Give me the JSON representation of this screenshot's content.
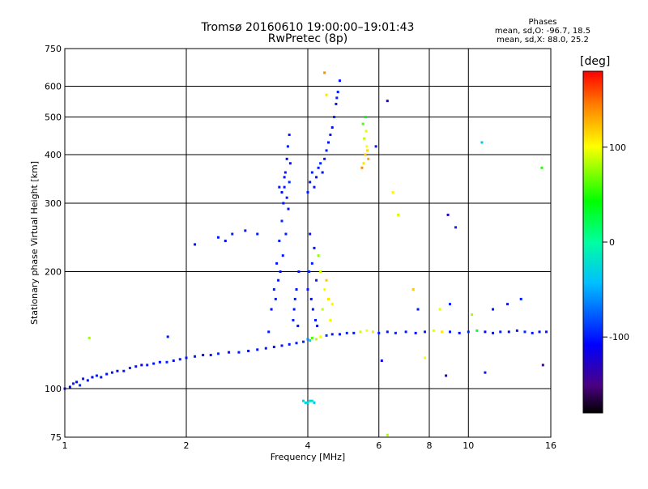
{
  "title_line1": "Tromsø 20160610 19:00:00–19:01:43",
  "title_line2": "RwPretec (8p)",
  "stats": {
    "heading": "Phases",
    "o_line": "mean, sd,O: -96.7, 18.5",
    "x_line": "mean, sd,X:  88.0, 25.2"
  },
  "colorbar": {
    "unit": "[deg]",
    "range": [
      -180,
      180
    ],
    "ticks": [
      {
        "label": "100",
        "value": 100
      },
      {
        "label": "0",
        "value": 0
      },
      {
        "label": "-100",
        "value": -100
      }
    ]
  },
  "chart_data": {
    "type": "scatter",
    "xlabel": "Frequency [MHz]",
    "ylabel": "Stationary phase Virtual Height [km]",
    "xscale": "log",
    "yscale": "log",
    "xlim": [
      1,
      16
    ],
    "ylim": [
      75,
      750
    ],
    "grid": true,
    "x_ticks": [
      {
        "label": "1",
        "value": 1
      },
      {
        "label": "2",
        "value": 2
      },
      {
        "label": "4",
        "value": 4
      },
      {
        "label": "6",
        "value": 6
      },
      {
        "label": "8",
        "value": 8
      },
      {
        "label": "10",
        "value": 10
      },
      {
        "label": "16",
        "value": 16
      }
    ],
    "y_ticks": [
      {
        "label": "75",
        "value": 75
      },
      {
        "label": "100",
        "value": 100
      },
      {
        "label": "200",
        "value": 200
      },
      {
        "label": "300",
        "value": 300
      },
      {
        "label": "400",
        "value": 400
      },
      {
        "label": "500",
        "value": 500
      },
      {
        "label": "600",
        "value": 600
      },
      {
        "label": "750",
        "value": 750
      }
    ],
    "gridlines_x": [
      1,
      2,
      4,
      6,
      8,
      10,
      16
    ],
    "gridlines_y": [
      75,
      100,
      200,
      300,
      400,
      500,
      600,
      750
    ],
    "series": [
      {
        "color_by": "phase_deg",
        "points": [
          [
            1.0,
            100,
            -100
          ],
          [
            1.03,
            101,
            -105
          ],
          [
            1.05,
            103,
            -98
          ],
          [
            1.07,
            104,
            -110
          ],
          [
            1.09,
            102,
            -95
          ],
          [
            1.11,
            106,
            -100
          ],
          [
            1.14,
            105,
            -102
          ],
          [
            1.17,
            107,
            -108
          ],
          [
            1.2,
            108,
            -97
          ],
          [
            1.23,
            107,
            -101
          ],
          [
            1.27,
            109,
            -104
          ],
          [
            1.31,
            110,
            -99
          ],
          [
            1.35,
            111,
            -106
          ],
          [
            1.4,
            111,
            -100
          ],
          [
            1.45,
            113,
            -95
          ],
          [
            1.5,
            114,
            -103
          ],
          [
            1.55,
            115,
            -110
          ],
          [
            1.6,
            115,
            -98
          ],
          [
            1.66,
            116,
            -101
          ],
          [
            1.72,
            117,
            -105
          ],
          [
            1.79,
            117,
            -97
          ],
          [
            1.86,
            118,
            -104
          ],
          [
            1.93,
            119,
            -100
          ],
          [
            2.0,
            120,
            -102
          ],
          [
            2.1,
            121,
            -99
          ],
          [
            2.2,
            122,
            -106
          ],
          [
            2.3,
            122,
            -101
          ],
          [
            2.4,
            123,
            -96
          ],
          [
            2.55,
            124,
            -103
          ],
          [
            2.7,
            124,
            -100
          ],
          [
            2.85,
            125,
            -108
          ],
          [
            3.0,
            126,
            -101
          ],
          [
            3.15,
            127,
            -99
          ],
          [
            3.3,
            128,
            -104
          ],
          [
            3.45,
            129,
            -100
          ],
          [
            3.6,
            130,
            -102
          ],
          [
            3.75,
            131,
            -98
          ],
          [
            3.9,
            132,
            -95
          ],
          [
            4.0,
            134,
            -60
          ],
          [
            4.05,
            133,
            -30
          ],
          [
            4.1,
            135,
            60
          ],
          [
            4.2,
            134,
            85
          ],
          [
            4.3,
            136,
            100
          ],
          [
            4.45,
            137,
            -90
          ],
          [
            4.6,
            138,
            -100
          ],
          [
            4.8,
            138,
            -105
          ],
          [
            5.0,
            139,
            -95
          ],
          [
            5.2,
            139,
            -100
          ],
          [
            5.4,
            140,
            90
          ],
          [
            5.6,
            141,
            100
          ],
          [
            5.8,
            140,
            110
          ],
          [
            6.0,
            139,
            -100
          ],
          [
            6.3,
            140,
            -102
          ],
          [
            6.6,
            139,
            -96
          ],
          [
            7.0,
            140,
            -100
          ],
          [
            7.4,
            139,
            -105
          ],
          [
            7.8,
            140,
            -98
          ],
          [
            8.2,
            141,
            95
          ],
          [
            8.6,
            140,
            110
          ],
          [
            9.0,
            140,
            -100
          ],
          [
            9.5,
            139,
            -102
          ],
          [
            10.0,
            140,
            -97
          ],
          [
            10.5,
            141,
            30
          ],
          [
            11.0,
            140,
            -105
          ],
          [
            11.5,
            139,
            -100
          ],
          [
            12.0,
            140,
            -98
          ],
          [
            12.6,
            140,
            -103
          ],
          [
            13.2,
            141,
            -100
          ],
          [
            13.8,
            140,
            -96
          ],
          [
            14.4,
            139,
            -101
          ],
          [
            15.0,
            140,
            -104
          ],
          [
            15.6,
            140,
            -100
          ],
          [
            3.2,
            140,
            -100
          ],
          [
            3.25,
            160,
            -105
          ],
          [
            3.3,
            180,
            -98
          ],
          [
            3.35,
            210,
            -102
          ],
          [
            3.4,
            240,
            -100
          ],
          [
            3.45,
            270,
            -95
          ],
          [
            3.48,
            300,
            -103
          ],
          [
            3.5,
            330,
            -101
          ],
          [
            3.52,
            360,
            -99
          ],
          [
            3.55,
            390,
            -104
          ],
          [
            3.57,
            420,
            -100
          ],
          [
            3.6,
            450,
            -98
          ],
          [
            3.5,
            350,
            -102
          ],
          [
            3.55,
            310,
            -97
          ],
          [
            3.45,
            320,
            -106
          ],
          [
            3.4,
            330,
            -100
          ],
          [
            3.6,
            340,
            -95
          ],
          [
            3.62,
            380,
            -100
          ],
          [
            3.58,
            290,
            -103
          ],
          [
            3.53,
            250,
            -99
          ],
          [
            3.47,
            220,
            -101
          ],
          [
            3.42,
            200,
            -105
          ],
          [
            3.38,
            190,
            -100
          ],
          [
            3.33,
            170,
            -98
          ],
          [
            3.7,
            160,
            -102
          ],
          [
            3.75,
            180,
            -100
          ],
          [
            3.8,
            200,
            -104
          ],
          [
            3.68,
            150,
            -97
          ],
          [
            3.72,
            170,
            -100
          ],
          [
            3.78,
            145,
            -103
          ],
          [
            4.0,
            320,
            -100
          ],
          [
            4.05,
            340,
            -102
          ],
          [
            4.1,
            360,
            -98
          ],
          [
            4.15,
            330,
            -101
          ],
          [
            4.2,
            350,
            -104
          ],
          [
            4.25,
            370,
            -100
          ],
          [
            4.3,
            380,
            -96
          ],
          [
            4.35,
            360,
            -103
          ],
          [
            4.4,
            390,
            -100
          ],
          [
            4.45,
            410,
            -99
          ],
          [
            4.5,
            430,
            -102
          ],
          [
            4.55,
            450,
            -100
          ],
          [
            4.6,
            470,
            -105
          ],
          [
            4.65,
            500,
            -98
          ],
          [
            4.7,
            540,
            -101
          ],
          [
            4.75,
            580,
            -100
          ],
          [
            4.8,
            620,
            -103
          ],
          [
            4.72,
            560,
            -97
          ],
          [
            4.1,
            210,
            -100
          ],
          [
            4.15,
            230,
            -102
          ],
          [
            4.2,
            190,
            -98
          ],
          [
            4.05,
            250,
            -101
          ],
          [
            4.08,
            170,
            -104
          ],
          [
            4.12,
            160,
            -100
          ],
          [
            4.18,
            150,
            -99
          ],
          [
            4.22,
            145,
            -103
          ],
          [
            4.0,
            180,
            -100
          ],
          [
            4.03,
            200,
            -95
          ],
          [
            4.3,
            200,
            90
          ],
          [
            4.4,
            180,
            100
          ],
          [
            4.5,
            170,
            110
          ],
          [
            4.35,
            160,
            85
          ],
          [
            4.45,
            190,
            120
          ],
          [
            4.55,
            150,
            95
          ],
          [
            4.25,
            220,
            75
          ],
          [
            4.6,
            165,
            105
          ],
          [
            5.5,
            380,
            110
          ],
          [
            5.55,
            400,
            120
          ],
          [
            5.6,
            420,
            100
          ],
          [
            5.65,
            390,
            130
          ],
          [
            5.52,
            440,
            85
          ],
          [
            5.58,
            460,
            95
          ],
          [
            5.45,
            370,
            140
          ],
          [
            5.62,
            410,
            115
          ],
          [
            5.48,
            480,
            60
          ],
          [
            5.56,
            500,
            40
          ],
          [
            3.9,
            93,
            -30
          ],
          [
            4.0,
            92,
            -25
          ],
          [
            4.1,
            93,
            -20
          ],
          [
            3.95,
            92,
            -28
          ],
          [
            4.05,
            93,
            -22
          ],
          [
            4.15,
            92,
            -35
          ],
          [
            4.4,
            650,
            140
          ],
          [
            4.45,
            570,
            110
          ],
          [
            5.9,
            420,
            -100
          ],
          [
            6.3,
            550,
            -120
          ],
          [
            6.5,
            320,
            105
          ],
          [
            6.7,
            280,
            90
          ],
          [
            7.3,
            180,
            120
          ],
          [
            8.9,
            280,
            -130
          ],
          [
            9.3,
            260,
            -95
          ],
          [
            10.8,
            430,
            -40
          ],
          [
            13.5,
            170,
            -100
          ],
          [
            15.2,
            370,
            50
          ],
          [
            1.15,
            135,
            80
          ],
          [
            1.8,
            136,
            -100
          ],
          [
            2.1,
            235,
            -100
          ],
          [
            2.4,
            245,
            -102
          ],
          [
            2.6,
            250,
            -98
          ],
          [
            2.8,
            255,
            -101
          ],
          [
            3.0,
            250,
            -100
          ],
          [
            2.5,
            240,
            -104
          ],
          [
            7.5,
            160,
            -100
          ],
          [
            8.5,
            160,
            95
          ],
          [
            9.0,
            165,
            -100
          ],
          [
            10.2,
            155,
            80
          ],
          [
            11.5,
            160,
            -100
          ],
          [
            12.5,
            165,
            -102
          ],
          [
            6.3,
            76,
            80
          ],
          [
            7.8,
            120,
            100
          ],
          [
            8.8,
            108,
            -130
          ],
          [
            11.0,
            110,
            -100
          ],
          [
            15.3,
            115,
            -140
          ],
          [
            6.1,
            118,
            -120
          ]
        ]
      }
    ]
  }
}
